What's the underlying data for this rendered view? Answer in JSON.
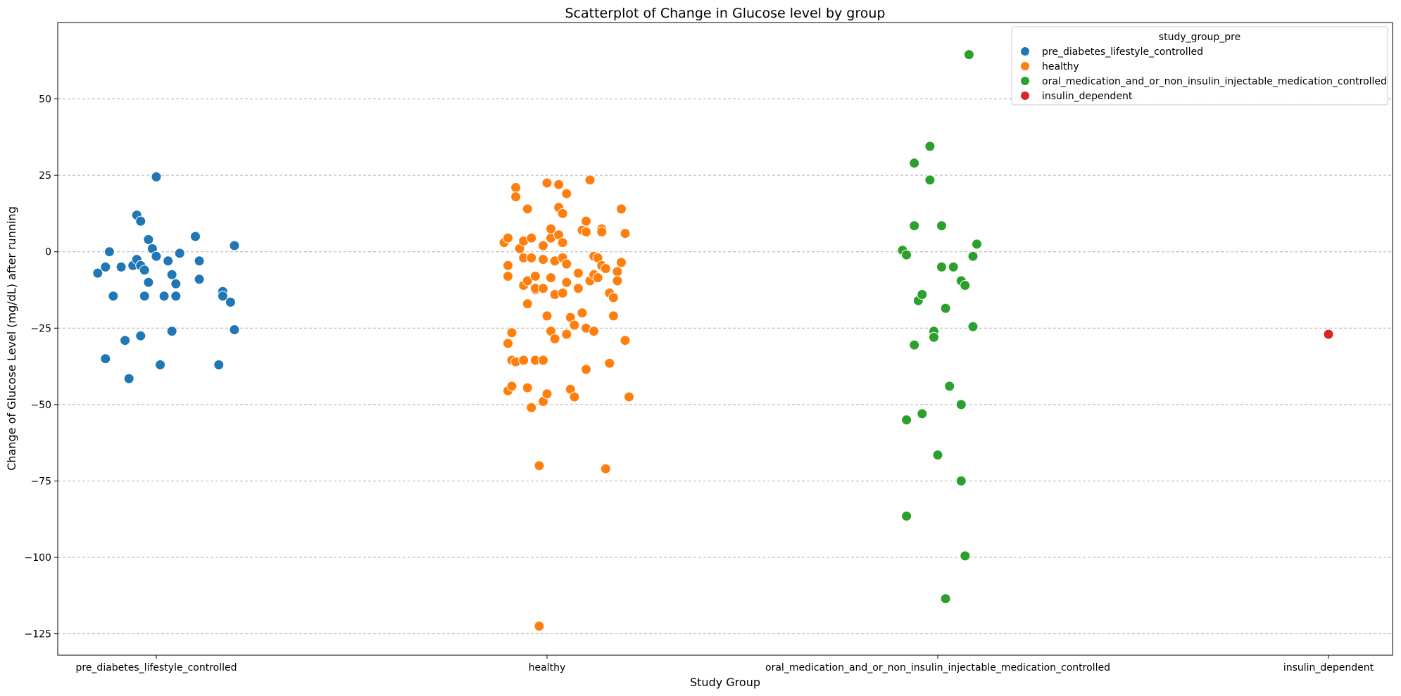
{
  "chart_data": {
    "type": "scatter",
    "title": "Scatterplot of Change in Glucose level by group",
    "xlabel": "Study Group",
    "ylabel": "Change of Glucose Level (mg/dL) after running",
    "categories": [
      "pre_diabetes_lifestyle_controlled",
      "healthy",
      "oral_medication_and_or_non_insulin_injectable_medication_controlled",
      "insulin_dependent"
    ],
    "ylim": [
      -132,
      75
    ],
    "yticks": [
      50,
      25,
      0,
      -25,
      -50,
      -75,
      -100,
      -125
    ],
    "grid": "y-dashed",
    "legend": {
      "title": "study_group_pre",
      "position": "top-right",
      "entries": [
        "pre_diabetes_lifestyle_controlled",
        "healthy",
        "oral_medication_and_or_non_insulin_injectable_medication_controlled",
        "insulin_dependent"
      ]
    },
    "colors": [
      "#1f77b4",
      "#ff7f0e",
      "#2ca02c",
      "#d62728"
    ],
    "series": [
      {
        "name": "pre_diabetes_lifestyle_controlled",
        "points": [
          [
            -0.15,
            -7
          ],
          [
            -0.13,
            -5
          ],
          [
            -0.12,
            0
          ],
          [
            -0.13,
            -35
          ],
          [
            -0.11,
            -14.5
          ],
          [
            -0.09,
            -5
          ],
          [
            -0.08,
            -29
          ],
          [
            -0.07,
            -41.5
          ],
          [
            -0.06,
            -4.5
          ],
          [
            -0.05,
            -2.5
          ],
          [
            -0.05,
            12
          ],
          [
            -0.04,
            -27.5
          ],
          [
            -0.04,
            10
          ],
          [
            -0.04,
            -4.5
          ],
          [
            -0.03,
            -6
          ],
          [
            -0.03,
            -14.5
          ],
          [
            -0.02,
            -10
          ],
          [
            -0.02,
            4
          ],
          [
            -0.01,
            1
          ],
          [
            0.0,
            -1.5
          ],
          [
            0.0,
            24.5
          ],
          [
            0.01,
            -37
          ],
          [
            0.02,
            -14.5
          ],
          [
            0.03,
            -3
          ],
          [
            0.04,
            -26
          ],
          [
            0.04,
            -7.5
          ],
          [
            0.05,
            -10.5
          ],
          [
            0.05,
            -14.5
          ],
          [
            0.06,
            -0.5
          ],
          [
            0.1,
            5
          ],
          [
            0.11,
            -9
          ],
          [
            0.11,
            -3
          ],
          [
            0.16,
            -37
          ],
          [
            0.17,
            -13
          ],
          [
            0.17,
            -14.5
          ],
          [
            0.19,
            -16.5
          ],
          [
            0.2,
            2
          ],
          [
            0.2,
            -25.5
          ]
        ]
      },
      {
        "name": "healthy",
        "points": [
          [
            -0.11,
            3
          ],
          [
            -0.1,
            4.5
          ],
          [
            -0.1,
            -4.5
          ],
          [
            -0.1,
            -8
          ],
          [
            -0.1,
            -30
          ],
          [
            -0.09,
            -26.5
          ],
          [
            -0.09,
            -35.5
          ],
          [
            -0.1,
            -45.5
          ],
          [
            -0.09,
            -44
          ],
          [
            -0.08,
            21
          ],
          [
            -0.08,
            18
          ],
          [
            -0.08,
            -36
          ],
          [
            -0.07,
            1
          ],
          [
            -0.06,
            3.5
          ],
          [
            -0.06,
            -2
          ],
          [
            -0.06,
            -11
          ],
          [
            -0.05,
            14
          ],
          [
            -0.05,
            -9.5
          ],
          [
            -0.05,
            -17
          ],
          [
            -0.06,
            -35.5
          ],
          [
            -0.05,
            -44.5
          ],
          [
            -0.04,
            -51
          ],
          [
            -0.04,
            -2
          ],
          [
            -0.04,
            4.5
          ],
          [
            -0.03,
            -8
          ],
          [
            -0.03,
            -12.5
          ],
          [
            -0.03,
            -12
          ],
          [
            -0.03,
            -35.5
          ],
          [
            -0.02,
            -122.5
          ],
          [
            -0.02,
            -70
          ],
          [
            -0.01,
            -2.5
          ],
          [
            -0.01,
            2
          ],
          [
            -0.01,
            -12
          ],
          [
            -0.01,
            -35.5
          ],
          [
            -0.01,
            -49
          ],
          [
            0.0,
            -21
          ],
          [
            0.0,
            -46.5
          ],
          [
            0.0,
            22.5
          ],
          [
            0.01,
            4.5
          ],
          [
            0.01,
            7.5
          ],
          [
            0.01,
            -8.5
          ],
          [
            0.01,
            -26
          ],
          [
            0.02,
            -3
          ],
          [
            0.02,
            -14
          ],
          [
            0.02,
            -28.5
          ],
          [
            0.03,
            14.5
          ],
          [
            0.03,
            22
          ],
          [
            0.03,
            5.5
          ],
          [
            0.04,
            -2
          ],
          [
            0.04,
            -13.5
          ],
          [
            0.04,
            12.5
          ],
          [
            0.04,
            3
          ],
          [
            0.05,
            19
          ],
          [
            0.05,
            -4
          ],
          [
            0.05,
            -10
          ],
          [
            0.05,
            -27
          ],
          [
            0.06,
            -21.5
          ],
          [
            0.06,
            -45
          ],
          [
            0.07,
            -47.5
          ],
          [
            0.07,
            -24
          ],
          [
            0.08,
            -7
          ],
          [
            0.08,
            -12
          ],
          [
            0.09,
            7
          ],
          [
            0.09,
            -20
          ],
          [
            0.1,
            -25
          ],
          [
            0.1,
            -38.5
          ],
          [
            0.1,
            6.5
          ],
          [
            0.1,
            10
          ],
          [
            0.11,
            -9.5
          ],
          [
            0.11,
            23.5
          ],
          [
            0.12,
            -1.5
          ],
          [
            0.12,
            -7.5
          ],
          [
            0.12,
            -26
          ],
          [
            0.13,
            -2
          ],
          [
            0.13,
            -8.5
          ],
          [
            0.14,
            7.5
          ],
          [
            0.14,
            6.5
          ],
          [
            0.14,
            -4.5
          ],
          [
            0.15,
            -5.5
          ],
          [
            0.16,
            -13.5
          ],
          [
            0.16,
            -36.5
          ],
          [
            0.15,
            -71
          ],
          [
            0.17,
            -15
          ],
          [
            0.17,
            -21
          ],
          [
            0.18,
            -6.5
          ],
          [
            0.18,
            -9.5
          ],
          [
            0.19,
            14
          ],
          [
            0.19,
            -3.5
          ],
          [
            0.2,
            6
          ],
          [
            0.2,
            -29
          ],
          [
            0.21,
            -47.5
          ]
        ]
      },
      {
        "name": "oral_medication_and_or_non_insulin_injectable_medication_controlled",
        "points": [
          [
            -0.09,
            0.5
          ],
          [
            -0.08,
            -1
          ],
          [
            -0.08,
            -55
          ],
          [
            -0.08,
            -86.5
          ],
          [
            -0.06,
            8.5
          ],
          [
            -0.06,
            29
          ],
          [
            -0.05,
            -16
          ],
          [
            -0.06,
            -30.5
          ],
          [
            -0.04,
            -14
          ],
          [
            -0.04,
            -53
          ],
          [
            -0.02,
            23.5
          ],
          [
            -0.02,
            34.5
          ],
          [
            -0.01,
            -26
          ],
          [
            -0.01,
            -28
          ],
          [
            0.0,
            -66.5
          ],
          [
            0.01,
            8.5
          ],
          [
            0.01,
            -5
          ],
          [
            0.02,
            -18.5
          ],
          [
            0.02,
            -113.5
          ],
          [
            0.03,
            -44
          ],
          [
            0.04,
            -5
          ],
          [
            0.06,
            -9.5
          ],
          [
            0.06,
            -50
          ],
          [
            0.06,
            -75
          ],
          [
            0.07,
            -11
          ],
          [
            0.07,
            -99.5
          ],
          [
            0.08,
            64.5
          ],
          [
            0.09,
            -1.5
          ],
          [
            0.09,
            -24.5
          ],
          [
            0.1,
            2.5
          ]
        ]
      },
      {
        "name": "insulin_dependent",
        "points": [
          [
            0.0,
            -27
          ]
        ]
      }
    ]
  }
}
